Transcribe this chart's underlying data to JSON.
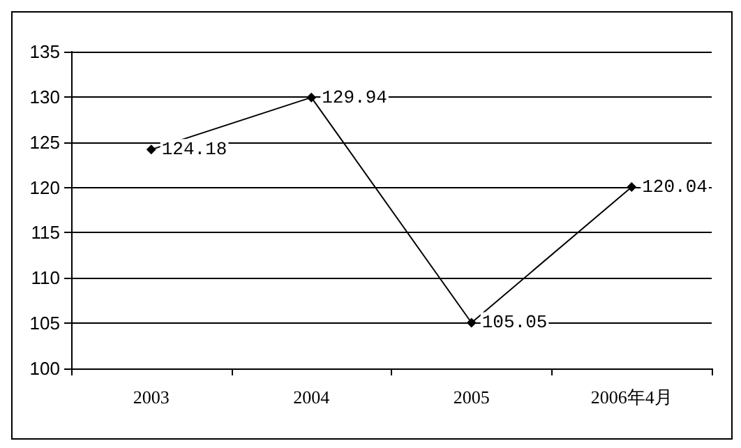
{
  "chart_data": {
    "type": "line",
    "categories": [
      "2003",
      "2004",
      "2005",
      "2006年4月"
    ],
    "series": [
      {
        "color": "#000000",
        "values": [
          124.18,
          129.94,
          105.05,
          120.04
        ]
      }
    ],
    "ylim": [
      100,
      135
    ],
    "yticks": [
      100,
      105,
      110,
      115,
      120,
      125,
      130,
      135
    ],
    "grid": "y",
    "marker": "diamond",
    "line_style": "solid",
    "data_labels": true
  }
}
